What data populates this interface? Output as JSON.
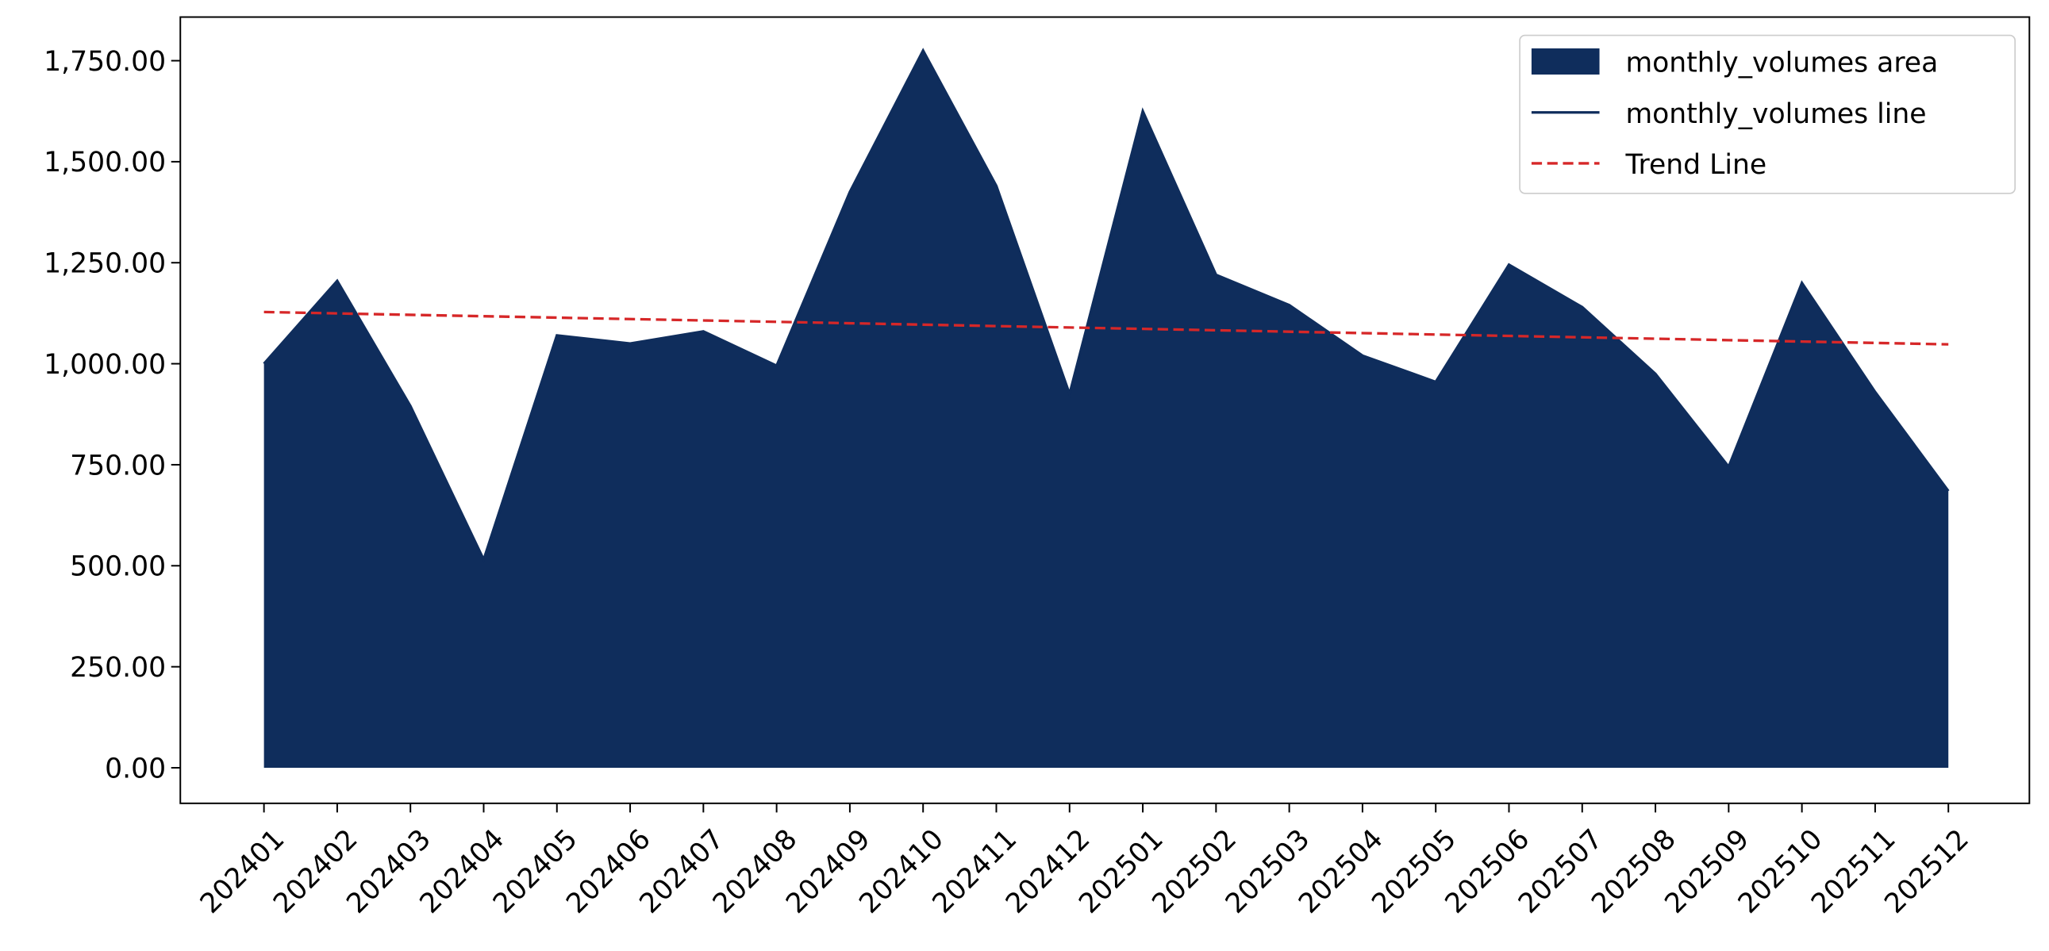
{
  "chart_data": {
    "type": "area",
    "categories": [
      "202401",
      "202402",
      "202403",
      "202404",
      "202405",
      "202406",
      "202407",
      "202408",
      "202409",
      "202410",
      "202411",
      "202412",
      "202501",
      "202502",
      "202503",
      "202504",
      "202505",
      "202506",
      "202507",
      "202508",
      "202509",
      "202510",
      "202511",
      "202512"
    ],
    "series": [
      {
        "name": "monthly_volumes area",
        "color": "#0f2d5c",
        "style": "area",
        "values": [
          1000,
          1205,
          895,
          515,
          1070,
          1050,
          1080,
          995,
          1425,
          1775,
          1440,
          925,
          1625,
          1220,
          1145,
          1020,
          955,
          1245,
          1140,
          975,
          745,
          1200,
          930,
          685
        ]
      },
      {
        "name": "monthly_volumes line",
        "color": "#0f2d5c",
        "style": "line",
        "values": [
          1000,
          1205,
          895,
          515,
          1070,
          1050,
          1080,
          995,
          1425,
          1775,
          1440,
          925,
          1625,
          1220,
          1145,
          1020,
          955,
          1245,
          1140,
          975,
          745,
          1200,
          930,
          685
        ]
      },
      {
        "name": "Trend Line",
        "color": "#d62728",
        "style": "dashed",
        "values": [
          1128,
          1124.5,
          1121,
          1117.6,
          1114.1,
          1110.6,
          1107.1,
          1103.7,
          1100.2,
          1096.7,
          1093.2,
          1089.7,
          1086.3,
          1082.8,
          1079.3,
          1075.8,
          1072.3,
          1068.9,
          1065.4,
          1061.9,
          1058.4,
          1054.9,
          1051.5,
          1048
        ]
      }
    ],
    "ylim": [
      -88,
      1858
    ],
    "yticks": [
      {
        "value": 0,
        "label": "0.00"
      },
      {
        "value": 250,
        "label": "250.00"
      },
      {
        "value": 500,
        "label": "500.00"
      },
      {
        "value": 750,
        "label": "750.00"
      },
      {
        "value": 1000,
        "label": "1,000.00"
      },
      {
        "value": 1250,
        "label": "1,250.00"
      },
      {
        "value": 1500,
        "label": "1,500.00"
      },
      {
        "value": 1750,
        "label": "1,750.00"
      }
    ],
    "grid": false,
    "legend": "upper right"
  }
}
